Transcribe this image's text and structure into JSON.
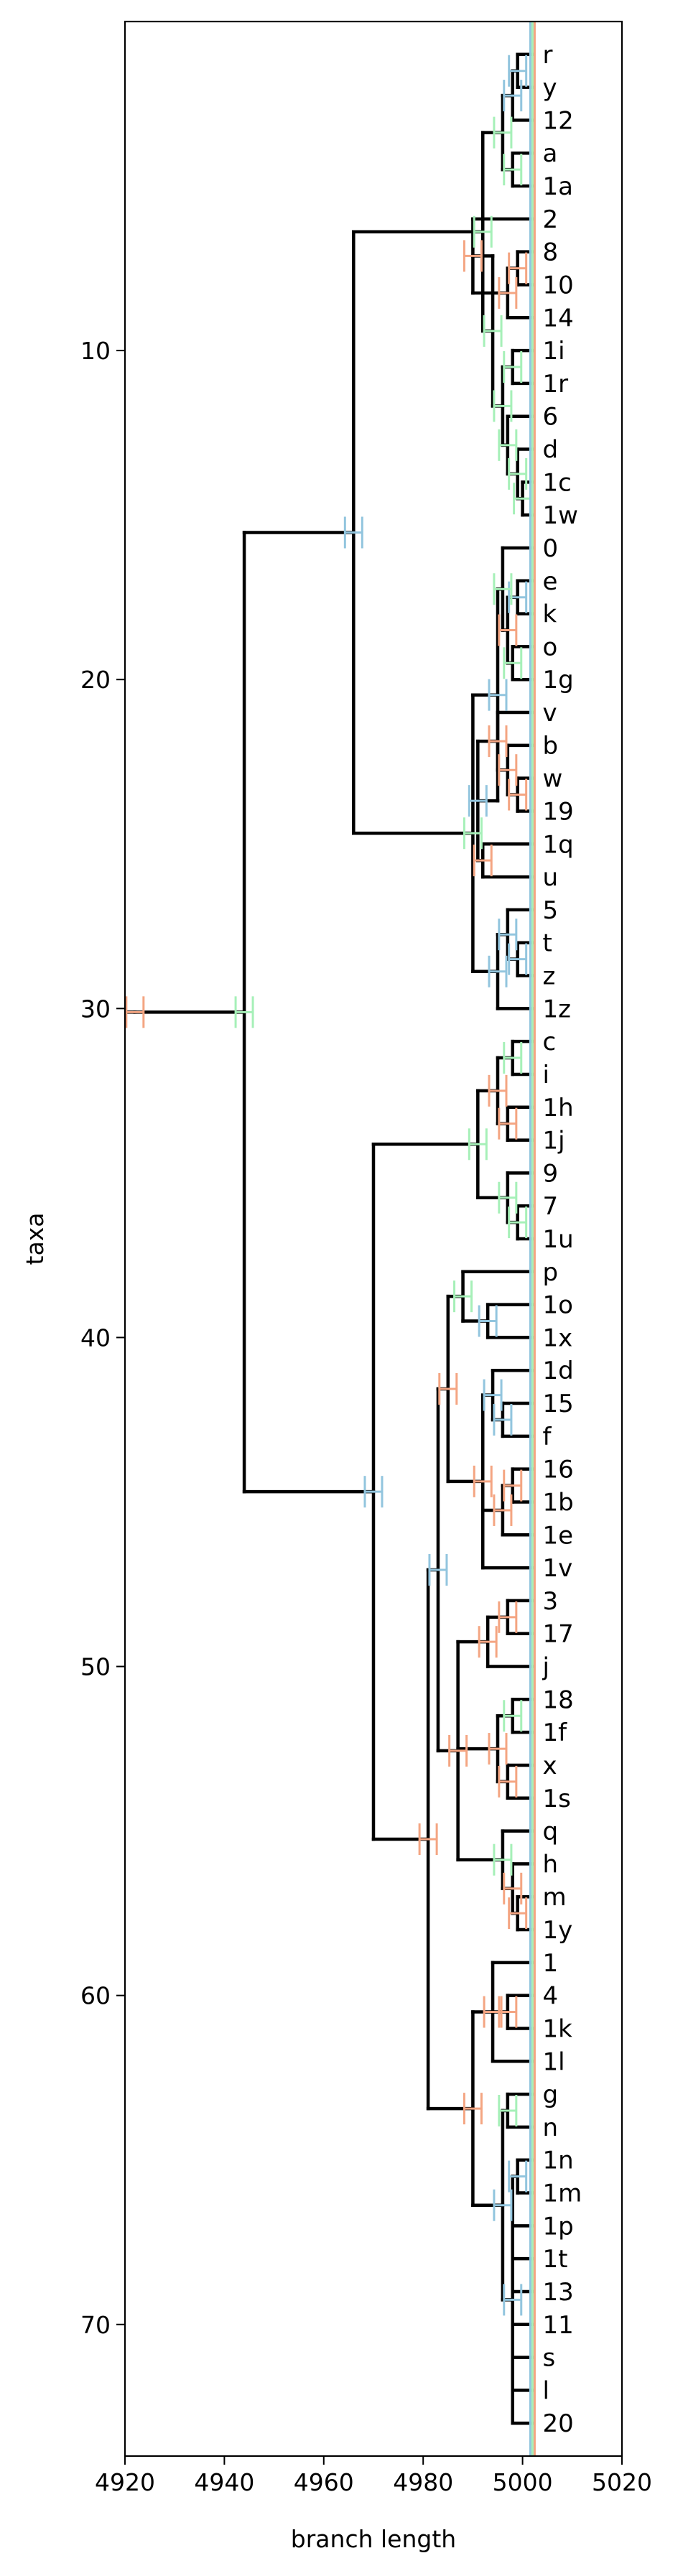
{
  "chart_data": {
    "type": "dendrogram",
    "title": "",
    "xlabel": "branch length",
    "ylabel": "taxa",
    "xlim": [
      4920,
      5020
    ],
    "ylim": [
      74,
      0
    ],
    "xticks": [
      4920,
      4940,
      4960,
      4980,
      5000,
      5020
    ],
    "yticks": [
      10,
      20,
      30,
      40,
      50,
      60,
      70
    ],
    "grid": false,
    "leaf_x": 5002,
    "error_colors": [
      "#f4a582",
      "#92c5de",
      "#a6f0b8"
    ],
    "edge_color": "#000000",
    "leaves": [
      "r",
      "y",
      "12",
      "a",
      "1a",
      "2",
      "8",
      "10",
      "14",
      "1i",
      "1r",
      "6",
      "d",
      "1c",
      "1w",
      "0",
      "e",
      "k",
      "o",
      "1g",
      "v",
      "b",
      "w",
      "19",
      "1q",
      "u",
      "5",
      "t",
      "z",
      "1z",
      "c",
      "i",
      "1h",
      "1j",
      "9",
      "7",
      "1u",
      "p",
      "1o",
      "1x",
      "1d",
      "15",
      "f",
      "16",
      "1b",
      "1e",
      "1v",
      "3",
      "17",
      "j",
      "18",
      "1f",
      "x",
      "1s",
      "q",
      "h",
      "m",
      "1y",
      "1",
      "4",
      "1k",
      "1l",
      "g",
      "n",
      "1n",
      "1m",
      "1p",
      "1t",
      "13",
      "11",
      "s",
      "l",
      "20"
    ],
    "tree": {
      "x": 4922,
      "e": 0,
      "c": [
        {
          "x": 4944,
          "e": 2,
          "c": [
            {
              "x": 4966,
              "e": 1,
              "c": [
                {
                  "x": 4992,
                  "c": [
                    {
                      "x": 4996,
                      "c": [
                        {
                          "x": 4998,
                          "c": [
                            {
                              "x": 4999,
                              "c": [
                                "r",
                                "y"
                              ]
                            },
                            "12"
                          ]
                        },
                        {
                          "x": 4998,
                          "c": [
                            "a",
                            "1a"
                          ]
                        }
                      ]
                    },
                    {
                      "x": 4994,
                      "c": [
                        {
                          "x": 4990,
                          "e": 0,
                          "c": [
                            "2",
                            {
                              "x": 4997,
                              "c": [
                                {
                                  "x": 4999,
                                  "c": [
                                    "8",
                                    "10"
                                  ]
                                },
                                "14"
                              ]
                            }
                          ]
                        },
                        {
                          "x": 4996,
                          "c": [
                            {
                              "x": 4998,
                              "c": [
                                "1i",
                                "1r"
                              ]
                            },
                            {
                              "x": 4997,
                              "c": [
                                "6",
                                {
                                  "x": 4999,
                                  "c": [
                                    "d",
                                    {
                                      "x": 5000,
                                      "c": [
                                        "1c",
                                        "1w"
                                      ]
                                    }
                                  ]
                                }
                              ]
                            }
                          ]
                        }
                      ]
                    }
                  ]
                },
                {
                  "x": 4990,
                  "e": 2,
                  "c": [
                    {
                      "x": 4995,
                      "c": [
                        {
                          "x": 4996,
                          "c": [
                            "0",
                            {
                              "x": 4997,
                              "e": 0,
                              "c": [
                                {
                                  "x": 4999,
                                  "c": [
                                    "e",
                                    "k"
                                  ]
                                },
                                {
                                  "x": 4998,
                                  "c": [
                                    "o",
                                    "1g"
                                  ]
                                }
                              ]
                            }
                          ]
                        },
                        {
                          "x": 4991,
                          "c": [
                            {
                              "x": 4995,
                              "c": [
                                "v",
                                {
                                  "x": 4997,
                                  "c": [
                                    "b",
                                    {
                                      "x": 4999,
                                      "c": [
                                        "w",
                                        "19"
                                      ]
                                    }
                                  ]
                                }
                              ]
                            },
                            {
                              "x": 4992,
                              "e": 0,
                              "c": [
                                "1q",
                                "u"
                              ]
                            }
                          ]
                        }
                      ]
                    },
                    {
                      "x": 4995,
                      "c": [
                        {
                          "x": 4997,
                          "c": [
                            "5",
                            {
                              "x": 4999,
                              "c": [
                                "t",
                                "z"
                              ]
                            }
                          ]
                        },
                        "1z"
                      ]
                    }
                  ]
                }
              ]
            },
            {
              "x": 4970,
              "e": 1,
              "c": [
                {
                  "x": 4991,
                  "e": 2,
                  "c": [
                    {
                      "x": 4995,
                      "e": 0,
                      "c": [
                        {
                          "x": 4998,
                          "c": [
                            "c",
                            "i"
                          ]
                        },
                        {
                          "x": 4997,
                          "c": [
                            "1h",
                            "1j"
                          ]
                        }
                      ]
                    },
                    {
                      "x": 4997,
                      "c": [
                        "9",
                        {
                          "x": 4999,
                          "c": [
                            "7",
                            "1u"
                          ]
                        }
                      ]
                    }
                  ]
                },
                {
                  "x": 4981,
                  "e": 0,
                  "c": [
                    {
                      "x": 4983,
                      "e": 1,
                      "c": [
                        {
                          "x": 4985,
                          "c": [
                            {
                              "x": 4988,
                              "e": 2,
                              "c": [
                                "p",
                                {
                                  "x": 4993,
                                  "c": [
                                    "1o",
                                    "1x"
                                  ]
                                }
                              ]
                            },
                            {
                              "x": 4992,
                              "c": [
                                {
                                  "x": 4994,
                                  "c": [
                                    "1d",
                                    {
                                      "x": 4996,
                                      "c": [
                                        "15",
                                        "f"
                                      ]
                                    }
                                  ]
                                },
                                {
                                  "x": 4996,
                                  "c": [
                                    {
                                      "x": 4998,
                                      "c": [
                                        "16",
                                        "1b"
                                      ]
                                    },
                                    "1e"
                                  ]
                                },
                                "1v"
                              ]
                            }
                          ]
                        },
                        {
                          "x": 4987,
                          "c": [
                            {
                              "x": 4993,
                              "c": [
                                {
                                  "x": 4997,
                                  "c": [
                                    "3",
                                    "17"
                                  ]
                                },
                                "j"
                              ]
                            },
                            {
                              "x": 4995,
                              "c": [
                                {
                                  "x": 4998,
                                  "c": [
                                    "18",
                                    "1f"
                                  ]
                                },
                                {
                                  "x": 4997,
                                  "c": [
                                    "x",
                                    "1s"
                                  ]
                                }
                              ]
                            },
                            {
                              "x": 4996,
                              "e": 2,
                              "c": [
                                "q",
                                {
                                  "x": 4998,
                                  "c": [
                                    "h",
                                    {
                                      "x": 4999,
                                      "c": [
                                        "m",
                                        "1y"
                                      ]
                                    }
                                  ]
                                }
                              ]
                            }
                          ]
                        }
                      ]
                    },
                    {
                      "x": 4990,
                      "e": 0,
                      "c": [
                        {
                          "x": 4994,
                          "c": [
                            "1",
                            {
                              "x": 4997,
                              "c": [
                                "4",
                                "1k"
                              ]
                            },
                            "1l"
                          ]
                        },
                        {
                          "x": 4996,
                          "c": [
                            {
                              "x": 4997,
                              "c": [
                                "g",
                                "n"
                              ]
                            },
                            {
                              "x": 4998,
                              "c": [
                                {
                                  "x": 4999,
                                  "c": [
                                    "1n",
                                    "1m"
                                  ]
                                },
                                "1p",
                                "1t",
                                "13",
                                "11",
                                "s",
                                "l",
                                "20"
                              ]
                            }
                          ]
                        }
                      ]
                    }
                  ]
                }
              ]
            }
          ]
        }
      ]
    }
  }
}
